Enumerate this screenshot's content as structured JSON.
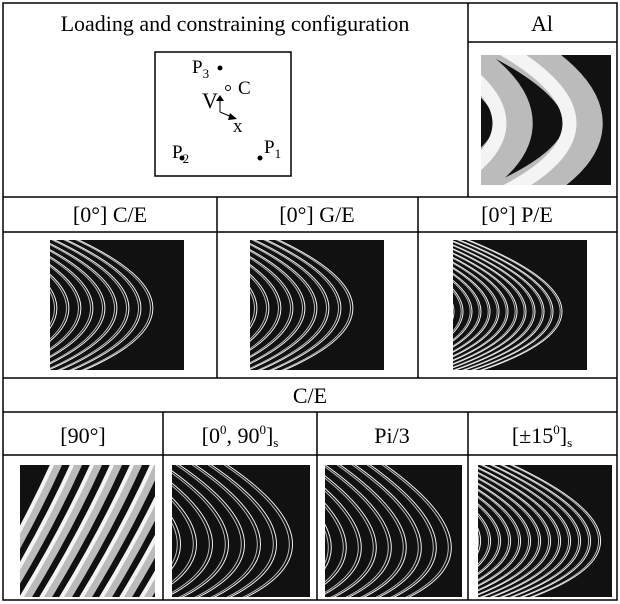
{
  "header": {
    "title": "Loading  and constraining configuration",
    "material": "Al"
  },
  "diagram": {
    "p3": {
      "label": "P",
      "sub": "3"
    },
    "center": "C",
    "axis_v": "V",
    "axis_x": "x",
    "p2": {
      "label": "P",
      "sub": "2"
    },
    "p1": {
      "label": "P",
      "sub": "1"
    }
  },
  "row1": {
    "headers": [
      "[0°] C/E",
      "[0°] G/E",
      "[0°] P/E"
    ]
  },
  "section": "C/E",
  "row2": {
    "h0": "[90°]",
    "h1": {
      "a": "[0",
      "sup1": "0",
      "b": ", 90",
      "sup2": "0",
      "c": "]",
      "sub": "s"
    },
    "h2": "Pi/3",
    "h3": {
      "a": "[±15",
      "sup": "0",
      "b": "]",
      "sub": "s"
    }
  }
}
